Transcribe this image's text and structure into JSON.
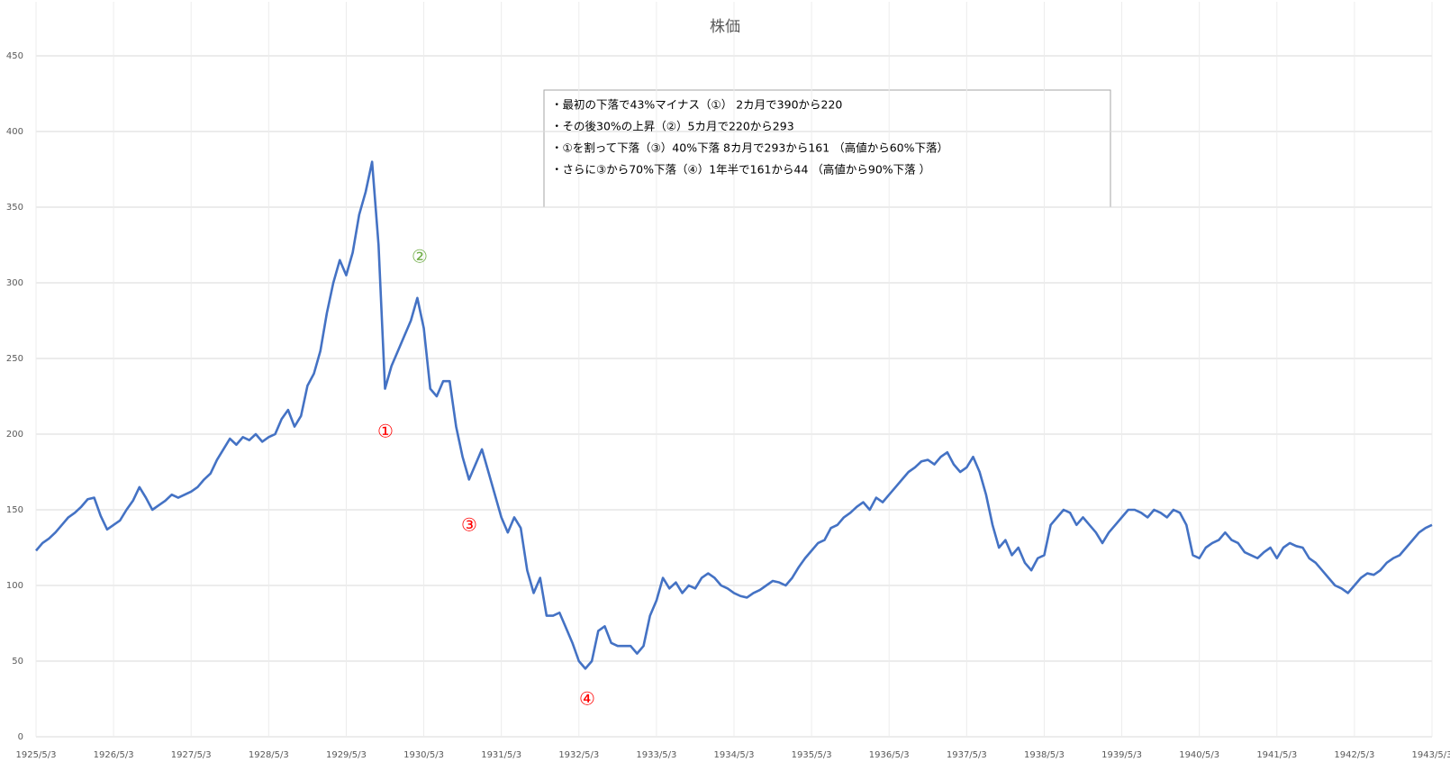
{
  "chart_data": {
    "type": "line",
    "title": "株価",
    "categories": [
      "1925/5/3",
      null,
      null,
      null,
      null,
      null,
      null,
      null,
      null,
      null,
      null,
      null,
      "1926/5/3",
      null,
      null,
      null,
      null,
      null,
      null,
      null,
      null,
      null,
      null,
      null,
      "1927/5/3",
      null,
      null,
      null,
      null,
      null,
      null,
      null,
      null,
      null,
      null,
      null,
      "1928/5/3",
      null,
      null,
      null,
      null,
      null,
      null,
      null,
      null,
      null,
      null,
      null,
      "1929/5/3",
      null,
      null,
      null,
      null,
      null,
      null,
      null,
      null,
      null,
      null,
      null,
      "1930/5/3",
      null,
      null,
      null,
      null,
      null,
      null,
      null,
      null,
      null,
      null,
      null,
      "1931/5/3",
      null,
      null,
      null,
      null,
      null,
      null,
      null,
      null,
      null,
      null,
      null,
      "1932/5/3",
      null,
      null,
      null,
      null,
      null,
      null,
      null,
      null,
      null,
      null,
      null,
      "1933/5/3",
      null,
      null,
      null,
      null,
      null,
      null,
      null,
      null,
      null,
      null,
      null,
      "1934/5/3",
      null,
      null,
      null,
      null,
      null,
      null,
      null,
      null,
      null,
      null,
      null,
      "1935/5/3",
      null,
      null,
      null,
      null,
      null,
      null,
      null,
      null,
      null,
      null,
      null,
      "1936/5/3",
      null,
      null,
      null,
      null,
      null,
      null,
      null,
      null,
      null,
      null,
      null,
      "1937/5/3",
      null,
      null,
      null,
      null,
      null,
      null,
      null,
      null,
      null,
      null,
      null,
      "1938/5/3",
      null,
      null,
      null,
      null,
      null,
      null,
      null,
      null,
      null,
      null,
      null,
      "1939/5/3",
      null,
      null,
      null,
      null,
      null,
      null,
      null,
      null,
      null,
      null,
      null,
      "1940/5/3",
      null,
      null,
      null,
      null,
      null,
      null,
      null,
      null,
      null,
      null,
      null,
      "1941/5/3",
      null,
      null,
      null,
      null,
      null,
      null,
      null,
      null,
      null,
      null,
      null,
      "1942/5/3",
      null,
      null,
      null,
      null,
      null,
      null,
      null,
      null,
      null,
      null,
      null,
      "1943/5/3"
    ],
    "values": [
      123,
      128,
      131,
      135,
      140,
      145,
      148,
      152,
      157,
      158,
      146,
      137,
      140,
      143,
      150,
      156,
      165,
      158,
      150,
      153,
      156,
      160,
      158,
      160,
      162,
      165,
      170,
      174,
      183,
      190,
      197,
      193,
      198,
      196,
      200,
      195,
      198,
      200,
      210,
      216,
      205,
      212,
      232,
      240,
      255,
      280,
      300,
      315,
      305,
      320,
      345,
      360,
      380,
      325,
      230,
      245,
      255,
      265,
      275,
      290,
      270,
      230,
      225,
      235,
      235,
      205,
      185,
      170,
      180,
      190,
      175,
      160,
      145,
      135,
      145,
      138,
      110,
      95,
      105,
      80,
      80,
      82,
      72,
      62,
      50,
      45,
      50,
      70,
      73,
      62,
      60,
      60,
      60,
      55,
      60,
      80,
      90,
      105,
      98,
      102,
      95,
      100,
      98,
      105,
      108,
      105,
      100,
      98,
      95,
      93,
      92,
      95,
      97,
      100,
      103,
      102,
      100,
      105,
      112,
      118,
      123,
      128,
      130,
      138,
      140,
      145,
      148,
      152,
      155,
      150,
      158,
      155,
      160,
      165,
      170,
      175,
      178,
      182,
      183,
      180,
      185,
      188,
      180,
      175,
      178,
      185,
      175,
      160,
      140,
      125,
      130,
      120,
      125,
      115,
      110,
      118,
      120,
      140,
      145,
      150,
      148,
      140,
      145,
      140,
      135,
      128,
      135,
      140,
      145,
      150,
      150,
      148,
      145,
      150,
      148,
      145,
      150,
      148,
      140,
      120,
      118,
      125,
      128,
      130,
      135,
      130,
      128,
      122,
      120,
      118,
      122,
      125,
      118,
      125,
      128,
      126,
      125,
      118,
      115,
      110,
      105,
      100,
      98,
      95,
      100,
      105,
      108,
      107,
      110,
      115,
      118,
      120,
      125,
      130,
      135,
      138,
      140
    ],
    "color": "#4472c4",
    "ylim": [
      0,
      450
    ],
    "yticks": [
      0,
      50,
      100,
      150,
      200,
      250,
      300,
      350,
      400,
      450
    ],
    "grid": true,
    "annotations": {
      "box": [
        "・最初の下落で43%マイナス（①） 2カ月で390から220",
        "・その後30%の上昇（②）5カ月で220から293",
        "・①を割って下落（③）40%下落 8カ月で293から161 （高値から60%下落）",
        "・さらに③から70%下落（④）1年半で161から44 （高値から90%下落 ）"
      ],
      "markers": [
        {
          "label": "①",
          "color": "#ff0000"
        },
        {
          "label": "②",
          "color": "#70ad47"
        },
        {
          "label": "③",
          "color": "#ff0000"
        },
        {
          "label": "④",
          "color": "#ff0000"
        }
      ]
    }
  }
}
